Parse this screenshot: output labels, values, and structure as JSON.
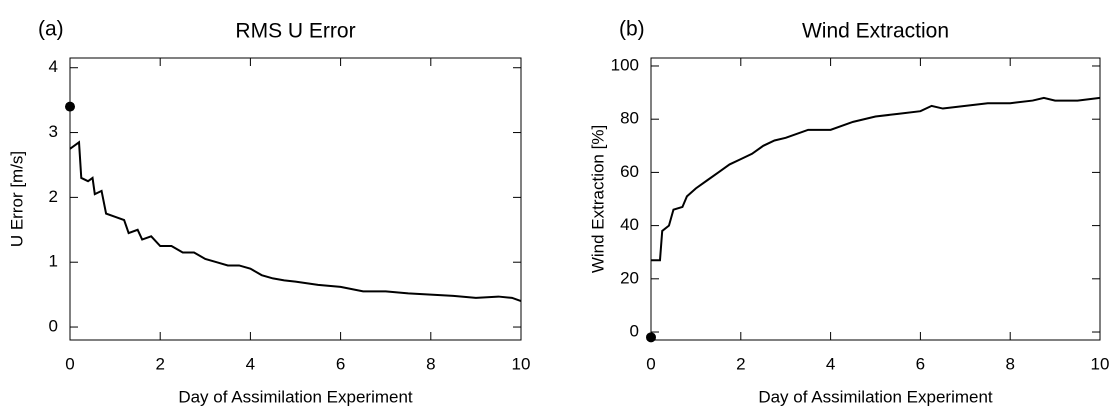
{
  "chart_data": [
    {
      "type": "line",
      "panel": "(a)",
      "title": "RMS U Error",
      "xlabel": "Day of Assimilation Experiment",
      "ylabel": "U Error [m/s]",
      "xlim": [
        0,
        10
      ],
      "xticks": [
        0,
        2,
        4,
        6,
        8,
        10
      ],
      "ylim": [
        -0.2,
        4.15
      ],
      "yticks": [
        0,
        1,
        2,
        3,
        4
      ],
      "x": [
        0,
        0.1,
        0.2,
        0.25,
        0.4,
        0.5,
        0.55,
        0.7,
        0.8,
        1.0,
        1.2,
        1.3,
        1.5,
        1.6,
        1.8,
        2.0,
        2.25,
        2.5,
        2.75,
        3.0,
        3.25,
        3.5,
        3.75,
        4.0,
        4.25,
        4.5,
        4.75,
        5.0,
        5.5,
        6.0,
        6.5,
        7.0,
        7.5,
        8.0,
        8.5,
        9.0,
        9.5,
        9.8,
        10
      ],
      "values": [
        2.75,
        2.8,
        2.85,
        2.3,
        2.25,
        2.3,
        2.05,
        2.1,
        1.75,
        1.7,
        1.65,
        1.45,
        1.5,
        1.35,
        1.4,
        1.25,
        1.25,
        1.15,
        1.15,
        1.05,
        1.0,
        0.95,
        0.95,
        0.9,
        0.8,
        0.75,
        0.72,
        0.7,
        0.65,
        0.62,
        0.55,
        0.55,
        0.52,
        0.5,
        0.48,
        0.45,
        0.47,
        0.45,
        0.4
      ],
      "color": "#000000",
      "points": [
        {
          "x": 0,
          "y": 3.4
        }
      ]
    },
    {
      "type": "line",
      "panel": "(b)",
      "title": "Wind Extraction",
      "xlabel": "Day of Assimilation Experiment",
      "ylabel": "Wind Extraction [%]",
      "xlim": [
        0,
        10
      ],
      "xticks": [
        0,
        2,
        4,
        6,
        8,
        10
      ],
      "ylim": [
        -3,
        103
      ],
      "yticks": [
        0,
        20,
        40,
        60,
        80,
        100
      ],
      "x": [
        0,
        0.2,
        0.25,
        0.4,
        0.5,
        0.7,
        0.8,
        1.0,
        1.25,
        1.5,
        1.75,
        2.0,
        2.25,
        2.5,
        2.75,
        3.0,
        3.5,
        4.0,
        4.5,
        5.0,
        5.5,
        6.0,
        6.25,
        6.5,
        7.0,
        7.5,
        8.0,
        8.5,
        8.75,
        9.0,
        9.5,
        10
      ],
      "values": [
        27,
        27,
        38,
        40,
        46,
        47,
        51,
        54,
        57,
        60,
        63,
        65,
        67,
        70,
        72,
        73,
        76,
        76,
        79,
        81,
        82,
        83,
        85,
        84,
        85,
        86,
        86,
        87,
        88,
        87,
        87,
        88
      ],
      "color": "#000000",
      "points": [
        {
          "x": 0,
          "y": -2
        }
      ]
    }
  ]
}
